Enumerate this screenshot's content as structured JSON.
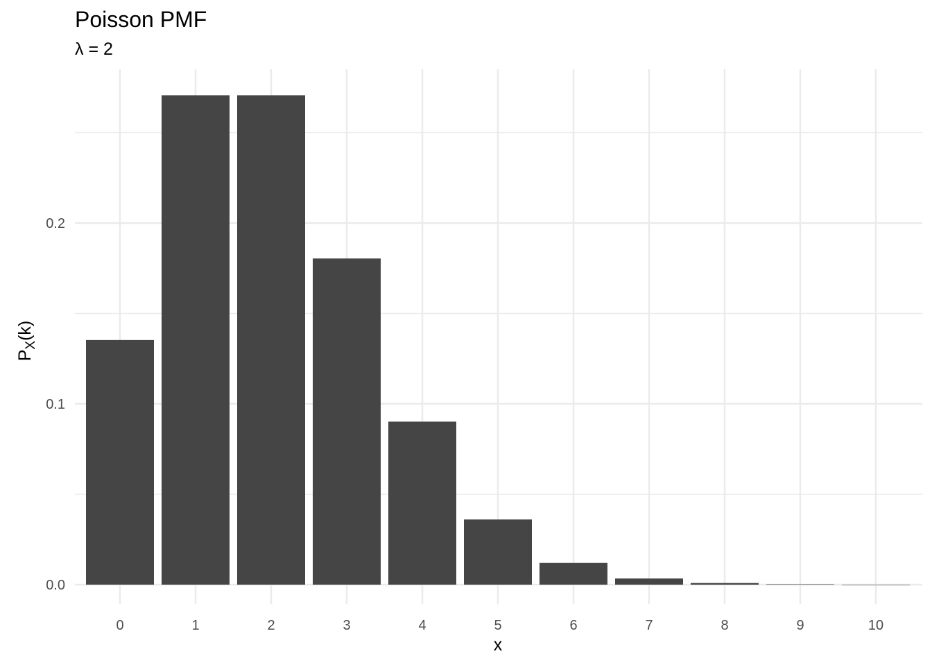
{
  "chart_data": {
    "type": "bar",
    "title": "Poisson PMF",
    "subtitle": "λ = 2",
    "xlabel": "x",
    "ylabel": "P",
    "ylabel_sub": "X",
    "ylabel_suffix": "(k)",
    "categories": [
      "0",
      "1",
      "2",
      "3",
      "4",
      "5",
      "6",
      "7",
      "8",
      "9",
      "10"
    ],
    "values": [
      0.1353,
      0.2707,
      0.2707,
      0.1804,
      0.0902,
      0.0361,
      0.012,
      0.0034,
      0.0009,
      0.0002,
      0.0
    ],
    "y_ticks": [
      "0.0",
      "0.1",
      "0.2"
    ],
    "y_tick_values": [
      0.0,
      0.1,
      0.2
    ],
    "ylim": [
      0,
      0.2707
    ],
    "grid": true,
    "bar_color": "#454545",
    "grid_color": "#ebebeb"
  }
}
